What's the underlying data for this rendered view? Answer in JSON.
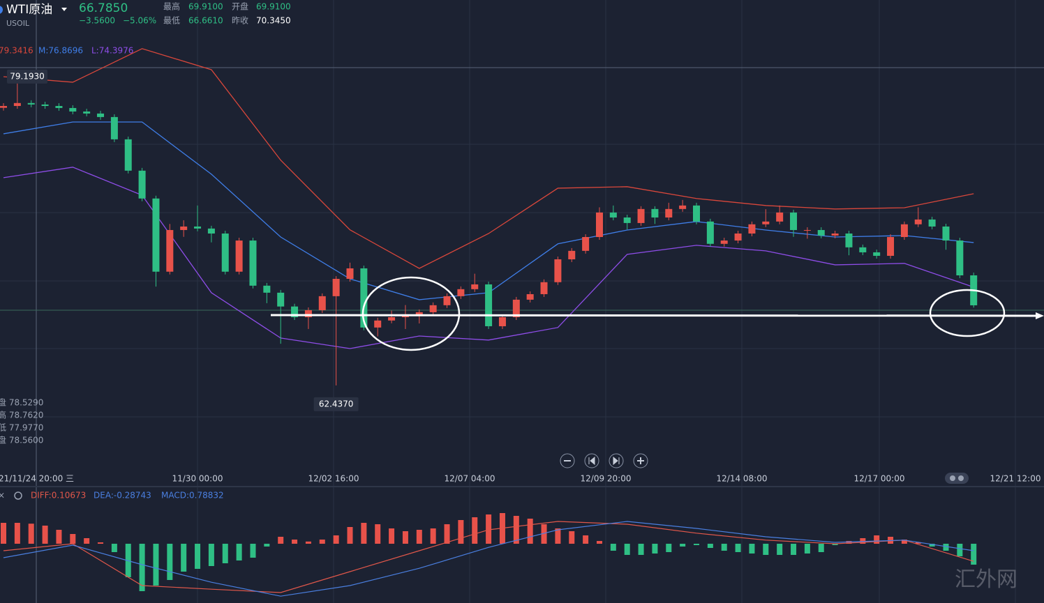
{
  "header": {
    "symbol": "WTI原油",
    "code": "USOIL",
    "price": "66.7850",
    "change": "−3.5600",
    "change_pct": "−5.06%",
    "high_label": "最高",
    "high": "69.9100",
    "open_label": "开盘",
    "open": "69.9100",
    "low_label": "最低",
    "low": "66.6610",
    "prev_label": "昨收",
    "prev": "70.3450"
  },
  "boll_legend": [
    "79.3416",
    "M:76.8696",
    "L:74.3976"
  ],
  "ohlc_panel": [
    "盘 78.5290",
    "高 78.7620",
    "低 77.9770",
    "盘 78.5600"
  ],
  "x_labels": [
    "21/11/24 20:00 三",
    "11/30 00:00",
    "12/02 16:00",
    "12/07 04:00",
    "12/09 20:00",
    "12/14 08:00",
    "12/17 00:00",
    "12/21 12:00"
  ],
  "chart_data": {
    "type": "candlestick",
    "up_color": "#e8524a",
    "down_color": "#2fbf85",
    "ylim": [
      57.82,
      83.35
    ],
    "open": [
      77.5,
      77.6,
      77.76,
      77.68,
      77.6,
      77.49,
      77.3,
      77.19,
      77.0,
      75.79,
      74.09,
      72.58,
      68.61,
      70.87,
      71.06,
      70.95,
      70.68,
      68.61,
      70.3,
      67.85,
      67.47,
      66.72,
      66.14,
      66.52,
      67.28,
      68.22,
      68.79,
      65.58,
      65.96,
      66.14,
      66.26,
      66.41,
      66.79,
      67.28,
      67.66,
      67.92,
      65.65,
      66.14,
      67.09,
      67.39,
      68.04,
      69.28,
      69.74,
      70.49,
      71.82,
      71.55,
      71.25,
      72.01,
      71.55,
      72.01,
      72.2,
      71.33,
      70.12,
      70.3,
      70.68,
      71.18,
      71.33,
      71.82,
      70.87,
      70.87,
      70.57,
      70.68,
      69.93,
      69.66,
      69.47,
      70.49,
      71.18,
      71.44,
      71.06,
      70.3,
      68.41
    ],
    "high": [
      77.75,
      79.193,
      77.91,
      77.83,
      77.75,
      77.64,
      77.45,
      77.34,
      77.15,
      75.94,
      74.24,
      72.73,
      71.2,
      71.4,
      72.2,
      71.1,
      70.83,
      70.45,
      70.45,
      68.0,
      67.62,
      66.87,
      66.67,
      67.43,
      68.37,
      69.1,
      68.94,
      66.11,
      66.5,
      66.8,
      66.56,
      66.94,
      67.43,
      67.81,
      68.5,
      68.07,
      66.29,
      67.24,
      67.54,
      68.19,
      69.43,
      69.89,
      70.64,
      72.1,
      72.2,
      71.7,
      72.16,
      72.16,
      72.35,
      72.5,
      72.35,
      71.48,
      70.45,
      70.83,
      71.33,
      72.0,
      72.2,
      71.97,
      71.02,
      71.02,
      70.83,
      70.83,
      70.08,
      69.81,
      70.64,
      71.33,
      72.1,
      71.59,
      71.21,
      70.45,
      68.56
    ],
    "low": [
      77.35,
      77.45,
      77.53,
      77.45,
      77.34,
      77.15,
      77.04,
      76.85,
      75.64,
      73.94,
      72.43,
      67.8,
      68.46,
      70.5,
      70.8,
      70.2,
      68.46,
      68.46,
      67.7,
      66.9,
      64.7,
      65.99,
      65.5,
      66.37,
      62.437,
      68.07,
      65.43,
      65.1,
      65.81,
      65.5,
      65.8,
      66.26,
      66.64,
      67.13,
      67.51,
      65.5,
      65.5,
      65.99,
      66.94,
      67.24,
      67.89,
      69.13,
      69.59,
      70.34,
      71.4,
      70.9,
      71.1,
      71.2,
      71.4,
      71.86,
      71.18,
      69.97,
      69.97,
      70.15,
      70.53,
      71.03,
      71.18,
      70.5,
      70.4,
      70.42,
      70.42,
      69.5,
      69.51,
      69.32,
      69.32,
      70.34,
      71.03,
      70.91,
      69.8,
      68.26,
      66.661
    ],
    "close": [
      77.6,
      77.76,
      77.68,
      77.6,
      77.49,
      77.3,
      77.19,
      77.0,
      75.79,
      74.09,
      72.58,
      68.61,
      70.87,
      71.06,
      70.95,
      70.68,
      68.61,
      70.3,
      67.85,
      67.47,
      66.72,
      66.14,
      66.52,
      67.28,
      68.22,
      68.79,
      65.58,
      65.96,
      66.14,
      66.26,
      66.41,
      66.79,
      67.28,
      67.66,
      67.92,
      65.65,
      66.14,
      67.09,
      67.39,
      68.04,
      69.28,
      69.74,
      70.49,
      71.82,
      71.55,
      71.25,
      72.01,
      71.55,
      72.01,
      72.2,
      71.33,
      70.12,
      70.3,
      70.68,
      71.18,
      71.33,
      71.82,
      70.87,
      70.87,
      70.57,
      70.68,
      69.93,
      69.66,
      69.47,
      70.49,
      71.18,
      71.44,
      71.06,
      70.3,
      68.41,
      66.785
    ],
    "price_tags": [
      {
        "value": 79.193,
        "label": "79.1930"
      },
      {
        "value": 62.437,
        "label": "62.4370"
      }
    ],
    "bands": {
      "index": [
        0,
        5,
        10,
        15,
        20,
        25,
        30,
        35,
        40,
        45,
        50,
        55,
        60,
        65,
        70
      ],
      "upper": [
        79.19,
        78.89,
        80.71,
        79.57,
        74.66,
        70.88,
        68.79,
        70.68,
        73.14,
        73.22,
        72.58,
        72.2,
        72.01,
        72.08,
        72.84
      ],
      "middle": [
        76.09,
        76.73,
        76.73,
        73.9,
        70.49,
        68.22,
        67.09,
        67.47,
        70.12,
        70.87,
        71.33,
        70.87,
        70.49,
        70.57,
        70.19
      ],
      "lower": [
        73.71,
        74.28,
        72.76,
        67.47,
        65.01,
        64.44,
        65.12,
        64.9,
        65.58,
        69.55,
        70.04,
        69.74,
        68.98,
        69.06,
        67.77
      ],
      "upper_color": "#d9473b",
      "middle_color": "#3f7ee8",
      "lower_color": "#8e4de8"
    }
  },
  "macd": {
    "labels": [
      "DIFF:0.10673",
      "DEA:-0.28743",
      "MACD:0.78832"
    ],
    "ylim": [
      -2.125,
      2.0
    ],
    "hist": [
      0.75,
      0.75,
      0.72,
      0.65,
      0.5,
      0.35,
      0.2,
      0.05,
      -0.3,
      -1.2,
      -1.7,
      -1.5,
      -1.3,
      -1.0,
      -0.9,
      -0.8,
      -0.7,
      -0.6,
      -0.5,
      -0.1,
      0.25,
      0.15,
      0.08,
      0.15,
      0.3,
      0.6,
      0.75,
      0.7,
      0.55,
      0.45,
      0.5,
      0.55,
      0.7,
      0.85,
      0.95,
      1.05,
      1.1,
      1.0,
      0.9,
      0.7,
      0.55,
      0.45,
      0.3,
      0.1,
      -0.25,
      -0.4,
      -0.4,
      -0.35,
      -0.3,
      -0.1,
      -0.05,
      -0.15,
      -0.25,
      -0.3,
      -0.35,
      -0.4,
      -0.4,
      -0.4,
      -0.35,
      -0.3,
      -0.05,
      0.1,
      0.2,
      0.3,
      0.25,
      0.15,
      0.05,
      -0.1,
      -0.25,
      -0.45,
      -0.75
    ],
    "diff": [
      -0.25,
      0,
      -1.5,
      -1.63,
      -1.75,
      -1.0,
      -0.25,
      0.5,
      0.8,
      0.7,
      0.38,
      0.13,
      0,
      0.13,
      -0.63
    ],
    "dea": [
      -0.5,
      -0.05,
      -0.75,
      -1.38,
      -1.88,
      -1.5,
      -0.88,
      -0.13,
      0.5,
      0.8,
      0.55,
      0.25,
      0.05,
      0.13,
      -0.25
    ],
    "diff_color": "#e0574a",
    "dea_color": "#4a7fe0"
  },
  "watermark": "汇外网"
}
